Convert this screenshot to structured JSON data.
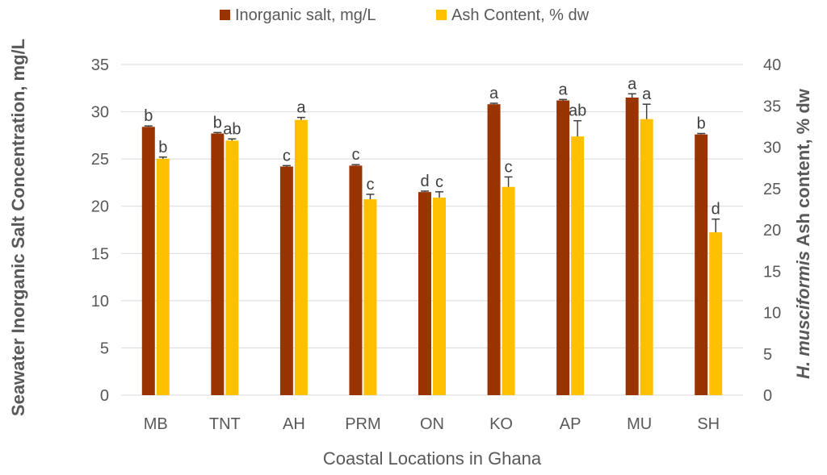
{
  "chart_data": {
    "type": "bar",
    "xlabel": "Coastal Locations in Ghana",
    "ylabel_left": "Seawater Inorganic Salt Concentration, mg/L",
    "ylabel_right_italic": "H. musciformis",
    "ylabel_right_rest": " Ash content, % dw",
    "ylim_left": [
      0,
      35
    ],
    "ylim_right": [
      0,
      40
    ],
    "yticks_left": [
      "0",
      "5",
      "10",
      "15",
      "20",
      "25",
      "30",
      "35"
    ],
    "yticks_right": [
      "0",
      "5",
      "10",
      "15",
      "20",
      "25",
      "30",
      "35",
      "40"
    ],
    "grid": true,
    "legend_position": "top",
    "categories": [
      "MB",
      "TNT",
      "AH",
      "PRM",
      "ON",
      "KO",
      "AP",
      "MU",
      "SH"
    ],
    "series": [
      {
        "name": "Inorganic salt, mg/L",
        "axis": "left",
        "color": "#993300",
        "values": [
          28.4,
          27.7,
          24.2,
          24.3,
          21.5,
          30.8,
          31.2,
          31.5,
          27.6
        ],
        "errors": [
          0.1,
          0.1,
          0.1,
          0.1,
          0.1,
          0.1,
          0.1,
          0.4,
          0.1
        ],
        "labels": [
          "b",
          "b",
          "c",
          "c",
          "d",
          "a",
          "a",
          "a",
          "b"
        ]
      },
      {
        "name": "Ash Content, % dw",
        "axis": "right",
        "color": "#FFC000",
        "values": [
          28.6,
          30.8,
          33.3,
          23.7,
          23.9,
          25.2,
          31.3,
          33.4,
          19.7
        ],
        "errors": [
          0.2,
          0.2,
          0.3,
          0.6,
          0.7,
          1.2,
          1.9,
          1.8,
          1.6
        ],
        "labels": [
          "b",
          "ab",
          "a",
          "c",
          "c",
          "c",
          "ab",
          "a",
          "d"
        ]
      }
    ]
  }
}
